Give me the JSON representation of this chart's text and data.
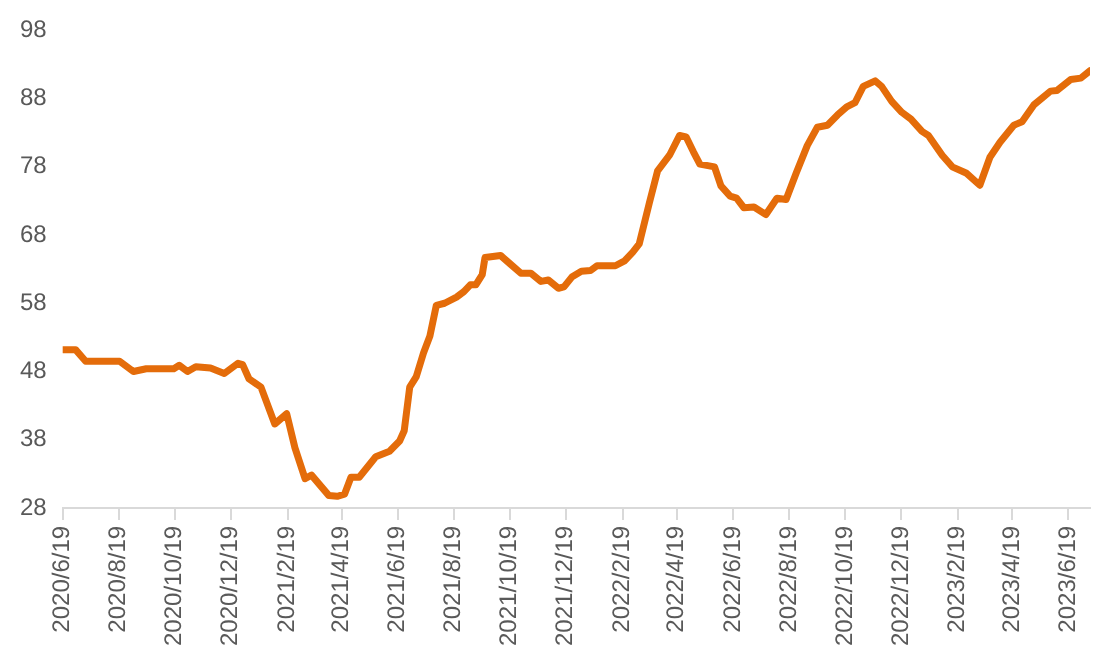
{
  "chart_data": {
    "type": "line",
    "x": [
      "2020-06-19",
      "2020-07-03",
      "2020-07-14",
      "2020-08-20",
      "2020-09-04",
      "2020-09-18",
      "2020-10-18",
      "2020-10-24",
      "2020-11-02",
      "2020-11-11",
      "2020-11-27",
      "2020-12-12",
      "2020-12-27",
      "2021-01-01",
      "2021-01-08",
      "2021-01-21",
      "2021-02-05",
      "2021-02-18",
      "2021-02-27",
      "2021-03-10",
      "2021-03-17",
      "2021-04-05",
      "2021-04-14",
      "2021-04-22",
      "2021-04-29",
      "2021-05-08",
      "2021-05-26",
      "2021-06-10",
      "2021-06-21",
      "2021-06-26",
      "2021-07-02",
      "2021-07-09",
      "2021-07-17",
      "2021-07-24",
      "2021-07-31",
      "2021-08-09",
      "2021-08-22",
      "2021-08-30",
      "2021-09-06",
      "2021-09-12",
      "2021-09-19",
      "2021-09-22",
      "2021-10-09",
      "2021-10-31",
      "2021-11-11",
      "2021-11-22",
      "2021-11-30",
      "2021-12-11",
      "2021-12-17",
      "2021-12-26",
      "2022-01-05",
      "2022-01-15",
      "2022-01-22",
      "2022-02-11",
      "2022-02-21",
      "2022-03-02",
      "2022-03-09",
      "2022-03-20",
      "2022-03-29",
      "2022-04-11",
      "2022-04-22",
      "2022-04-29",
      "2022-05-07",
      "2022-05-14",
      "2022-05-30",
      "2022-06-06",
      "2022-06-16",
      "2022-06-23",
      "2022-07-01",
      "2022-07-12",
      "2022-07-25",
      "2022-08-06",
      "2022-08-16",
      "2022-08-27",
      "2022-09-08",
      "2022-09-19",
      "2022-09-30",
      "2022-10-11",
      "2022-10-21",
      "2022-10-30",
      "2022-11-08",
      "2022-11-21",
      "2022-11-28",
      "2022-12-09",
      "2022-12-20",
      "2022-12-30",
      "2023-01-11",
      "2023-01-18",
      "2023-02-02",
      "2023-02-13",
      "2023-02-28",
      "2023-03-15",
      "2023-03-26",
      "2023-04-06",
      "2023-04-21",
      "2023-04-30",
      "2023-05-13",
      "2023-05-31",
      "2023-06-07",
      "2023-06-22",
      "2023-07-03",
      "2023-07-13"
    ],
    "series": [
      {
        "color": "#e46c0a",
        "values": [
          51.2,
          51.2,
          49.5,
          49.5,
          48,
          48.4,
          48.4,
          48.9,
          48,
          48.7,
          48.5,
          47.7,
          49.2,
          49,
          46.9,
          45.7,
          40.3,
          41.8,
          36.8,
          32.3,
          32.8,
          29.8,
          29.7,
          30,
          32.5,
          32.5,
          35.5,
          36.3,
          37.8,
          39.3,
          45.7,
          47.2,
          50.7,
          53.2,
          57.7,
          58,
          58.9,
          59.7,
          60.7,
          60.7,
          62.2,
          64.7,
          65,
          62.4,
          62.4,
          61.2,
          61.4,
          60.2,
          60.4,
          61.9,
          62.7,
          62.8,
          63.5,
          63.5,
          64.2,
          65.5,
          66.7,
          72.7,
          77.4,
          79.7,
          82.6,
          82.4,
          80.2,
          78.4,
          78,
          75.2,
          73.7,
          73.4,
          72,
          72.1,
          71,
          73.4,
          73.2,
          77.1,
          81.1,
          83.8,
          84.1,
          85.6,
          86.8,
          87.4,
          89.8,
          90.6,
          89.8,
          87.6,
          86,
          85,
          83.2,
          82.6,
          79.7,
          78,
          77.1,
          75.3,
          79.4,
          81.6,
          84.1,
          84.6,
          87.1,
          89.1,
          89.2,
          90.8,
          91,
          92.1
        ]
      }
    ],
    "xlim": [
      "2020-06-19",
      "2023-07-13"
    ],
    "xticks": [
      {
        "value": "2020-06-19",
        "label": "2020/6/19"
      },
      {
        "value": "2020-08-19",
        "label": "2020/8/19"
      },
      {
        "value": "2020-10-19",
        "label": "2020/10/19"
      },
      {
        "value": "2020-12-19",
        "label": "2020/12/19"
      },
      {
        "value": "2021-02-19",
        "label": "2021/2/19"
      },
      {
        "value": "2021-04-19",
        "label": "2021/4/19"
      },
      {
        "value": "2021-06-19",
        "label": "2021/6/19"
      },
      {
        "value": "2021-08-19",
        "label": "2021/8/19"
      },
      {
        "value": "2021-10-19",
        "label": "2021/10/19"
      },
      {
        "value": "2021-12-19",
        "label": "2021/12/19"
      },
      {
        "value": "2022-02-19",
        "label": "2022/2/19"
      },
      {
        "value": "2022-04-19",
        "label": "2022/4/19"
      },
      {
        "value": "2022-06-19",
        "label": "2022/6/19"
      },
      {
        "value": "2022-08-19",
        "label": "2022/8/19"
      },
      {
        "value": "2022-10-19",
        "label": "2022/10/19"
      },
      {
        "value": "2022-12-19",
        "label": "2022/12/19"
      },
      {
        "value": "2023-02-19",
        "label": "2023/2/19"
      },
      {
        "value": "2023-04-19",
        "label": "2023/4/19"
      },
      {
        "value": "2023-06-19",
        "label": "2023/6/19"
      }
    ],
    "ylim": [
      28,
      98
    ],
    "yticks": [
      28,
      38,
      48,
      58,
      68,
      78,
      88,
      98
    ],
    "grid": false,
    "legend": false,
    "marker": "none",
    "line_style": "solid"
  }
}
